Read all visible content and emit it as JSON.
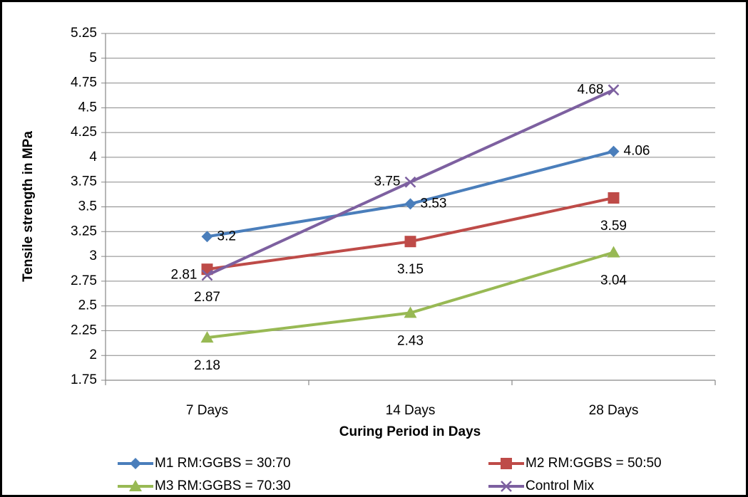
{
  "chart_data": {
    "type": "line",
    "categories": [
      "7 Days",
      "14 Days",
      "28 Days"
    ],
    "series": [
      {
        "name": "M1 RM:GGBS = 30:70",
        "color": "#4a7ebb",
        "marker": "diamond",
        "values": [
          3.2,
          3.53,
          4.06
        ]
      },
      {
        "name": "M2 RM:GGBS = 50:50",
        "color": "#be4b48",
        "marker": "square",
        "values": [
          2.87,
          3.15,
          3.59
        ]
      },
      {
        "name": "M3 RM:GGBS = 70:30",
        "color": "#98b954",
        "marker": "triangle",
        "values": [
          2.18,
          2.43,
          3.04
        ]
      },
      {
        "name": "Control Mix",
        "color": "#7d60a0",
        "marker": "x",
        "values": [
          2.81,
          3.75,
          4.68
        ]
      }
    ],
    "xlabel": "Curing Period in Days",
    "ylabel": "Tensile strength in MPa",
    "ylim": [
      1.75,
      5.25
    ],
    "yticks": [
      1.75,
      2,
      2.25,
      2.5,
      2.75,
      3,
      3.25,
      3.5,
      3.75,
      4,
      4.25,
      4.5,
      4.75,
      5,
      5.25
    ],
    "grid": true,
    "legend": "bottom"
  }
}
